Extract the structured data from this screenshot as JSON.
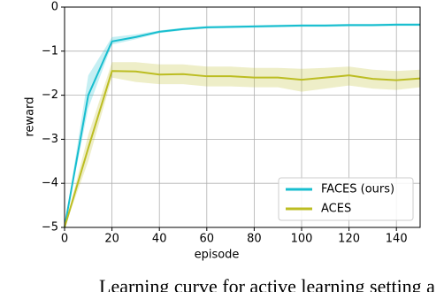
{
  "chart_data": {
    "type": "line",
    "xlabel": "episode",
    "ylabel": "reward",
    "x": [
      0,
      10,
      20,
      30,
      40,
      50,
      60,
      70,
      80,
      90,
      100,
      110,
      120,
      130,
      140,
      150
    ],
    "series": [
      {
        "name": "FACES (ours)",
        "color": "#17becf",
        "values": [
          -5,
          -2.0,
          -0.78,
          -0.68,
          -0.56,
          -0.5,
          -0.46,
          -0.45,
          -0.44,
          -0.43,
          -0.42,
          -0.42,
          -0.41,
          -0.41,
          -0.4,
          -0.4
        ],
        "lower": [
          -5,
          -2.3,
          -0.85,
          -0.73,
          -0.59,
          -0.53,
          -0.49,
          -0.48,
          -0.47,
          -0.46,
          -0.45,
          -0.45,
          -0.44,
          -0.44,
          -0.43,
          -0.43
        ],
        "upper": [
          -5,
          -1.55,
          -0.68,
          -0.62,
          -0.53,
          -0.47,
          -0.43,
          -0.42,
          -0.41,
          -0.4,
          -0.39,
          -0.39,
          -0.38,
          -0.38,
          -0.37,
          -0.37
        ]
      },
      {
        "name": "ACES",
        "color": "#bcbd22",
        "values": [
          -5,
          -3.2,
          -1.45,
          -1.46,
          -1.53,
          -1.52,
          -1.57,
          -1.57,
          -1.6,
          -1.6,
          -1.65,
          -1.6,
          -1.55,
          -1.63,
          -1.66,
          -1.62
        ],
        "lower": [
          -5,
          -3.5,
          -1.6,
          -1.7,
          -1.75,
          -1.75,
          -1.8,
          -1.8,
          -1.82,
          -1.82,
          -1.92,
          -1.85,
          -1.78,
          -1.85,
          -1.88,
          -1.82
        ],
        "upper": [
          -5,
          -2.9,
          -1.25,
          -1.25,
          -1.3,
          -1.3,
          -1.35,
          -1.35,
          -1.38,
          -1.38,
          -1.4,
          -1.38,
          -1.35,
          -1.42,
          -1.45,
          -1.42
        ]
      }
    ],
    "xlim": [
      0,
      150
    ],
    "xticks": [
      0,
      20,
      40,
      60,
      80,
      100,
      120,
      140
    ],
    "ylim": [
      -5,
      0
    ],
    "yticks": [
      {
        "value": -5,
        "label": "−5"
      },
      {
        "value": -4,
        "label": "−4"
      },
      {
        "value": -3,
        "label": "−3"
      },
      {
        "value": -2,
        "label": "−2"
      },
      {
        "value": -1,
        "label": "−1"
      },
      0
    ],
    "grid": true,
    "legend": "lower right"
  },
  "caption": "Learning curve for active learning setting a"
}
